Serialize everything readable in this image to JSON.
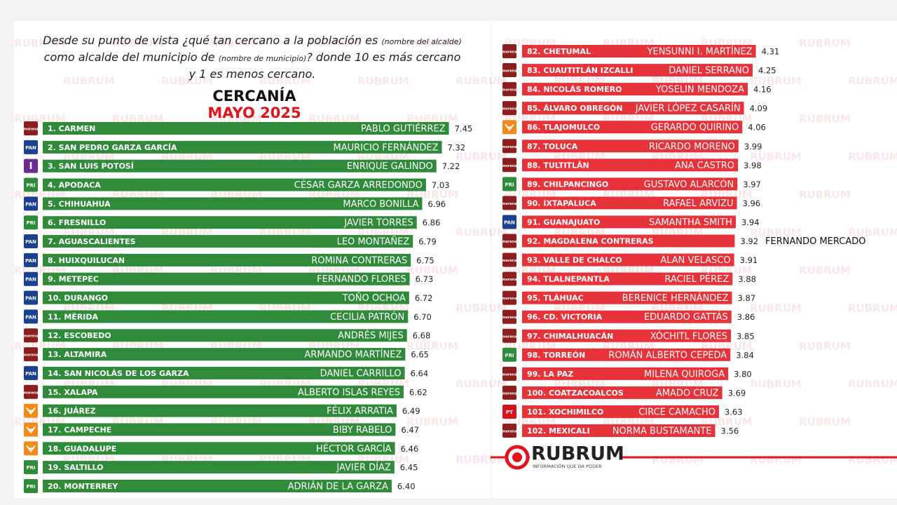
{
  "header": {
    "question": [
      "Desde su punto de vista ¿qué tan cercano a la población es ",
      "(nombre del alcalde)",
      " como alcalde del municipio de ",
      "(nombre de municipio)",
      "? donde 10 es más cercano y 1 es menos cercano."
    ],
    "title": "CERCANÍA",
    "subtitle": "MAYO 2025",
    "watermark": "RUBRUM",
    "brand": "RUBRUM",
    "tagline": "INFORMACIÓN QUE DA PODER"
  },
  "chart_data": [
    {
      "type": "bar",
      "color": "#2f8a3a",
      "categories": [
        "1. CARMEN",
        "2. SAN PEDRO GARZA GARCÍA",
        "3. SAN LUIS POTOSÍ",
        "4. APODACA",
        "5. CHIHUAHUA",
        "6. FRESNILLO",
        "7. AGUASCALIENTES",
        "8. HUIXQUILUCAN",
        "9. METEPEC",
        "10. DURANGO",
        "11. MÉRIDA",
        "12. ESCOBEDO",
        "13. ALTAMIRA",
        "14. SAN NICOLÁS DE LOS GARZA",
        "15. XALAPA",
        "16. JUÁREZ",
        "17. CAMPECHE",
        "18. GUADALUPE",
        "19. SALTILLO",
        "20. MONTERREY"
      ],
      "names": [
        "PABLO GUTIÉRREZ",
        "MAURICIO FERNÁNDEZ",
        "ENRIQUE GALINDO",
        "CÉSAR GARZA ARREDONDO",
        "MARCO BONILLA",
        "JAVIER TORRES",
        "LEO MONTAÑEZ",
        "ROMINA CONTRERAS",
        "FERNANDO FLORES",
        "TOÑO OCHOA",
        "CECILIA PATRÓN",
        "ANDRÉS MIJES",
        "ARMANDO MARTÍNEZ",
        "DANIEL CARRILLO",
        "ALBERTO ISLAS REYES",
        "FÉLIX ARRATIA",
        "BIBY RABELO",
        "HÉCTOR GARCÍA",
        "JAVIER DÍAZ",
        "ADRIÁN DE LA GARZA"
      ],
      "values": [
        7.45,
        7.32,
        7.22,
        7.03,
        6.96,
        6.86,
        6.79,
        6.75,
        6.73,
        6.72,
        6.7,
        6.68,
        6.65,
        6.64,
        6.62,
        6.49,
        6.47,
        6.46,
        6.45,
        6.4
      ],
      "value_labels": [
        "7.45",
        "7.32",
        "7.22",
        "7.03",
        "6.96",
        "6.86",
        "6.79",
        "6.75",
        "6.73",
        "6.72",
        "6.70",
        "6.68",
        "6.65",
        "6.64",
        "6.62",
        "6.49",
        "6.47",
        "6.46",
        "6.45",
        "6.40"
      ],
      "parties": [
        "morena",
        "PAN",
        "I",
        "PRI",
        "PAN",
        "PRI",
        "PAN",
        "PAN",
        "PAN",
        "PAN",
        "PAN",
        "morena",
        "morena",
        "PAN",
        "morena",
        null,
        null,
        null,
        "PRI",
        "PRI"
      ],
      "logo_colors": [
        "#8e1d1d",
        "#1b3f91",
        "#6a2c91",
        "#2e8b3a",
        "#1b3f91",
        "#2e8b3a",
        "#1b3f91",
        "#1b3f91",
        "#1b3f91",
        "#1b3f91",
        "#1b3f91",
        "#8e1d1d",
        "#8e1d1d",
        "#1b3f91",
        "#8e1d1d",
        "#f28a1a",
        "#f28a1a",
        "#f28a1a",
        "#2e8b3a",
        "#2e8b3a"
      ]
    },
    {
      "type": "bar",
      "color": "#e8323a",
      "categories": [
        "82. CHETUMAL",
        "83. CUAUTITLÁN IZCALLI",
        "84. NICOLÁS ROMERO",
        "85. ÁLVARO OBREGÓN",
        "86. TLAJOMULCO",
        "87. TOLUCA",
        "88. TULTITLÁN",
        "89. CHILPANCINGO",
        "90. IXTAPALUCA",
        "91. GUANAJUATO",
        "92. MAGDALENA CONTRERAS",
        "93. VALLE DE CHALCO",
        "94. TLALNEPANTLA",
        "95. TLÁHUAC",
        "96. CD. VICTORIA",
        "97. CHIMALHUACÁN",
        "98. TORREÓN",
        "99. LA PAZ",
        "100. COATZACOALCOS",
        "101. XOCHIMILCO",
        "102. MEXICALI"
      ],
      "names": [
        "YENSUNNI I. MARTÍNEZ",
        "DANIEL SERRANO",
        "YOSELIN MENDOZA",
        "JAVIER LÓPEZ CASARÍN",
        "GERARDO QUIRINO",
        "RICARDO MORENO",
        "ANA CASTRO",
        "GUSTAVO ALARCÓN",
        "RAFAEL ARVIZU",
        "SAMANTHA SMITH",
        "FERNANDO MERCADO",
        "ALAN VELASCO",
        "RACIEL PÉREZ",
        "BERENICE HERNÁNDEZ",
        "EDUARDO GATTÁS",
        "XÓCHITL FLORES",
        "ROMÁN ALBERTO CEPEDA",
        "MILENA QUIROGA",
        "AMADO CRUZ",
        "CIRCE CAMACHO",
        "NORMA BUSTAMANTE"
      ],
      "values": [
        4.31,
        4.25,
        4.16,
        4.09,
        4.06,
        3.99,
        3.98,
        3.97,
        3.96,
        3.94,
        3.92,
        3.91,
        3.88,
        3.87,
        3.86,
        3.85,
        3.84,
        3.8,
        3.69,
        3.63,
        3.56
      ],
      "value_labels": [
        "4.31",
        "4.25",
        "4.16",
        "4.09",
        "4.06",
        "3.99",
        "3.98",
        "3.97",
        "3.96",
        "3.94",
        "3.92",
        "3.91",
        "3.88",
        "3.87",
        "3.86",
        "3.85",
        "3.84",
        "3.80",
        "3.69",
        "3.63",
        "3.56"
      ],
      "parties": [
        "morena",
        "morena",
        "morena",
        "morena",
        null,
        "morena",
        "morena",
        "PRI",
        "morena",
        "PAN",
        "morena",
        "morena",
        "morena",
        "morena",
        "morena",
        "morena",
        "PRI",
        "morena",
        "morena",
        "PT",
        "morena"
      ],
      "logo_colors": [
        "#8e1d1d",
        "#8e1d1d",
        "#8e1d1d",
        "#8e1d1d",
        "#f28a1a",
        "#8e1d1d",
        "#8e1d1d",
        "#2e8b3a",
        "#8e1d1d",
        "#1b3f91",
        "#8e1d1d",
        "#8e1d1d",
        "#8e1d1d",
        "#8e1d1d",
        "#8e1d1d",
        "#8e1d1d",
        "#2e8b3a",
        "#8e1d1d",
        "#8e1d1d",
        "#d4151b",
        "#8e1d1d"
      ]
    }
  ]
}
